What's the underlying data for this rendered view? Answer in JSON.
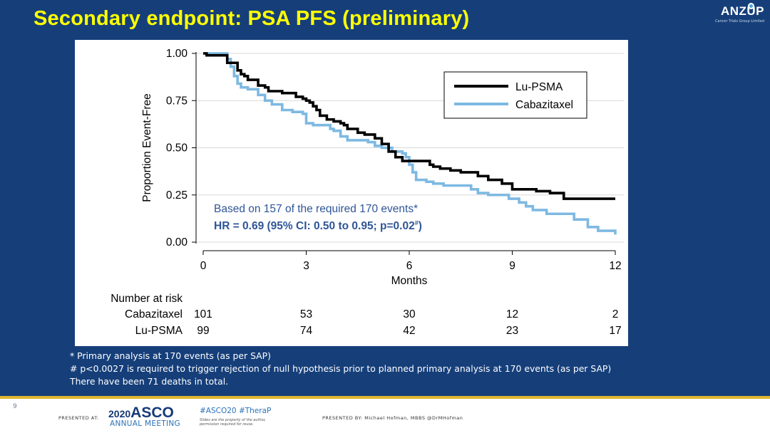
{
  "slide": {
    "title": "Secondary endpoint: PSA PFS (preliminary)",
    "logo_text": "ANZUP",
    "logo_subtext": "Cancer Trials Group Limited",
    "page_number": "9",
    "footnotes": [
      "* Primary analysis at 170 events (as per SAP)",
      "# p<0.0027 is required to trigger rejection of null hypothesis prior to planned primary analysis at 170 events (as per SAP)",
      "There have been 71 deaths in total."
    ],
    "footer": {
      "presented_at": "PRESENTED AT:",
      "asco_year": "2020",
      "asco_name": "ASCO",
      "asco_sub": "ANNUAL MEETING",
      "hashtags": "#ASCO20  #TheraP",
      "slide_note": "Slides are the property of the author, permission required for reuse.",
      "presented_by": "PRESENTED BY:  Michael Hofman, MBBS @DrMHofman"
    },
    "colors": {
      "background": "#163f7a",
      "title": "#ffff00",
      "accent_rule": "#e0b52d"
    }
  },
  "chart_data": {
    "type": "line",
    "subtype": "kaplan-meier step",
    "xlabel": "Months",
    "ylabel": "Proportion Event-Free",
    "xlim": [
      0,
      12
    ],
    "ylim": [
      0,
      1
    ],
    "x_ticks": [
      0,
      3,
      6,
      9,
      12
    ],
    "y_ticks": [
      "0.00",
      "0.25",
      "0.50",
      "0.75",
      "1.00"
    ],
    "grid": "horizontal",
    "legend_position": "top-right",
    "annotations": [
      "Based on 157 of the required 170 events*",
      "HR = 0.69 (95% CI: 0.50 to 0.95; p=0.02",
      "#",
      ")"
    ],
    "series": [
      {
        "name": "Lu-PSMA",
        "color": "#000000",
        "x": [
          0,
          0.1,
          0.3,
          0.7,
          1.0,
          1.1,
          1.2,
          1.3,
          1.6,
          1.8,
          1.9,
          2.0,
          2.3,
          2.7,
          2.9,
          3.0,
          3.1,
          3.2,
          3.3,
          3.4,
          3.6,
          3.8,
          4.0,
          4.1,
          4.2,
          4.5,
          4.7,
          5.0,
          5.2,
          5.4,
          5.6,
          5.8,
          6.0,
          6.6,
          6.7,
          6.9,
          7.2,
          7.5,
          8.0,
          8.3,
          8.7,
          9.0,
          9.7,
          10.1,
          10.5,
          12.0
        ],
        "y": [
          1.0,
          0.99,
          0.99,
          0.95,
          0.91,
          0.89,
          0.88,
          0.86,
          0.83,
          0.82,
          0.8,
          0.8,
          0.79,
          0.77,
          0.76,
          0.75,
          0.74,
          0.72,
          0.7,
          0.67,
          0.65,
          0.64,
          0.63,
          0.62,
          0.6,
          0.58,
          0.57,
          0.55,
          0.52,
          0.48,
          0.45,
          0.43,
          0.43,
          0.41,
          0.4,
          0.39,
          0.38,
          0.37,
          0.35,
          0.33,
          0.31,
          0.28,
          0.27,
          0.26,
          0.23,
          0.23
        ]
      },
      {
        "name": "Cabazitaxel",
        "color": "#7db9e2",
        "x": [
          0,
          0.3,
          0.6,
          0.7,
          0.8,
          0.9,
          1.0,
          1.1,
          1.3,
          1.6,
          1.8,
          2.0,
          2.3,
          2.6,
          2.9,
          3.0,
          3.2,
          3.5,
          3.7,
          3.8,
          4.0,
          4.2,
          4.5,
          4.8,
          5.0,
          5.2,
          5.5,
          5.8,
          5.9,
          6.0,
          6.1,
          6.2,
          6.5,
          6.7,
          7.0,
          7.5,
          7.8,
          8.0,
          8.3,
          8.7,
          8.9,
          9.2,
          9.4,
          9.6,
          10.0,
          10.5,
          10.8,
          11.2,
          11.5,
          12.0
        ],
        "y": [
          1.0,
          1.0,
          1.0,
          0.97,
          0.93,
          0.88,
          0.84,
          0.82,
          0.81,
          0.78,
          0.75,
          0.73,
          0.7,
          0.69,
          0.68,
          0.63,
          0.62,
          0.62,
          0.6,
          0.59,
          0.56,
          0.54,
          0.54,
          0.53,
          0.51,
          0.5,
          0.48,
          0.47,
          0.45,
          0.41,
          0.37,
          0.33,
          0.32,
          0.31,
          0.3,
          0.3,
          0.28,
          0.26,
          0.25,
          0.25,
          0.23,
          0.21,
          0.19,
          0.17,
          0.15,
          0.15,
          0.12,
          0.08,
          0.06,
          0.04
        ]
      }
    ],
    "risk_table": {
      "header": "Number at risk",
      "timepoints": [
        0,
        3,
        6,
        9,
        12
      ],
      "rows": [
        {
          "label": "Cabazitaxel",
          "counts": [
            101,
            53,
            30,
            12,
            2
          ]
        },
        {
          "label": "Lu-PSMA",
          "counts": [
            99,
            74,
            42,
            23,
            17
          ]
        }
      ]
    }
  }
}
